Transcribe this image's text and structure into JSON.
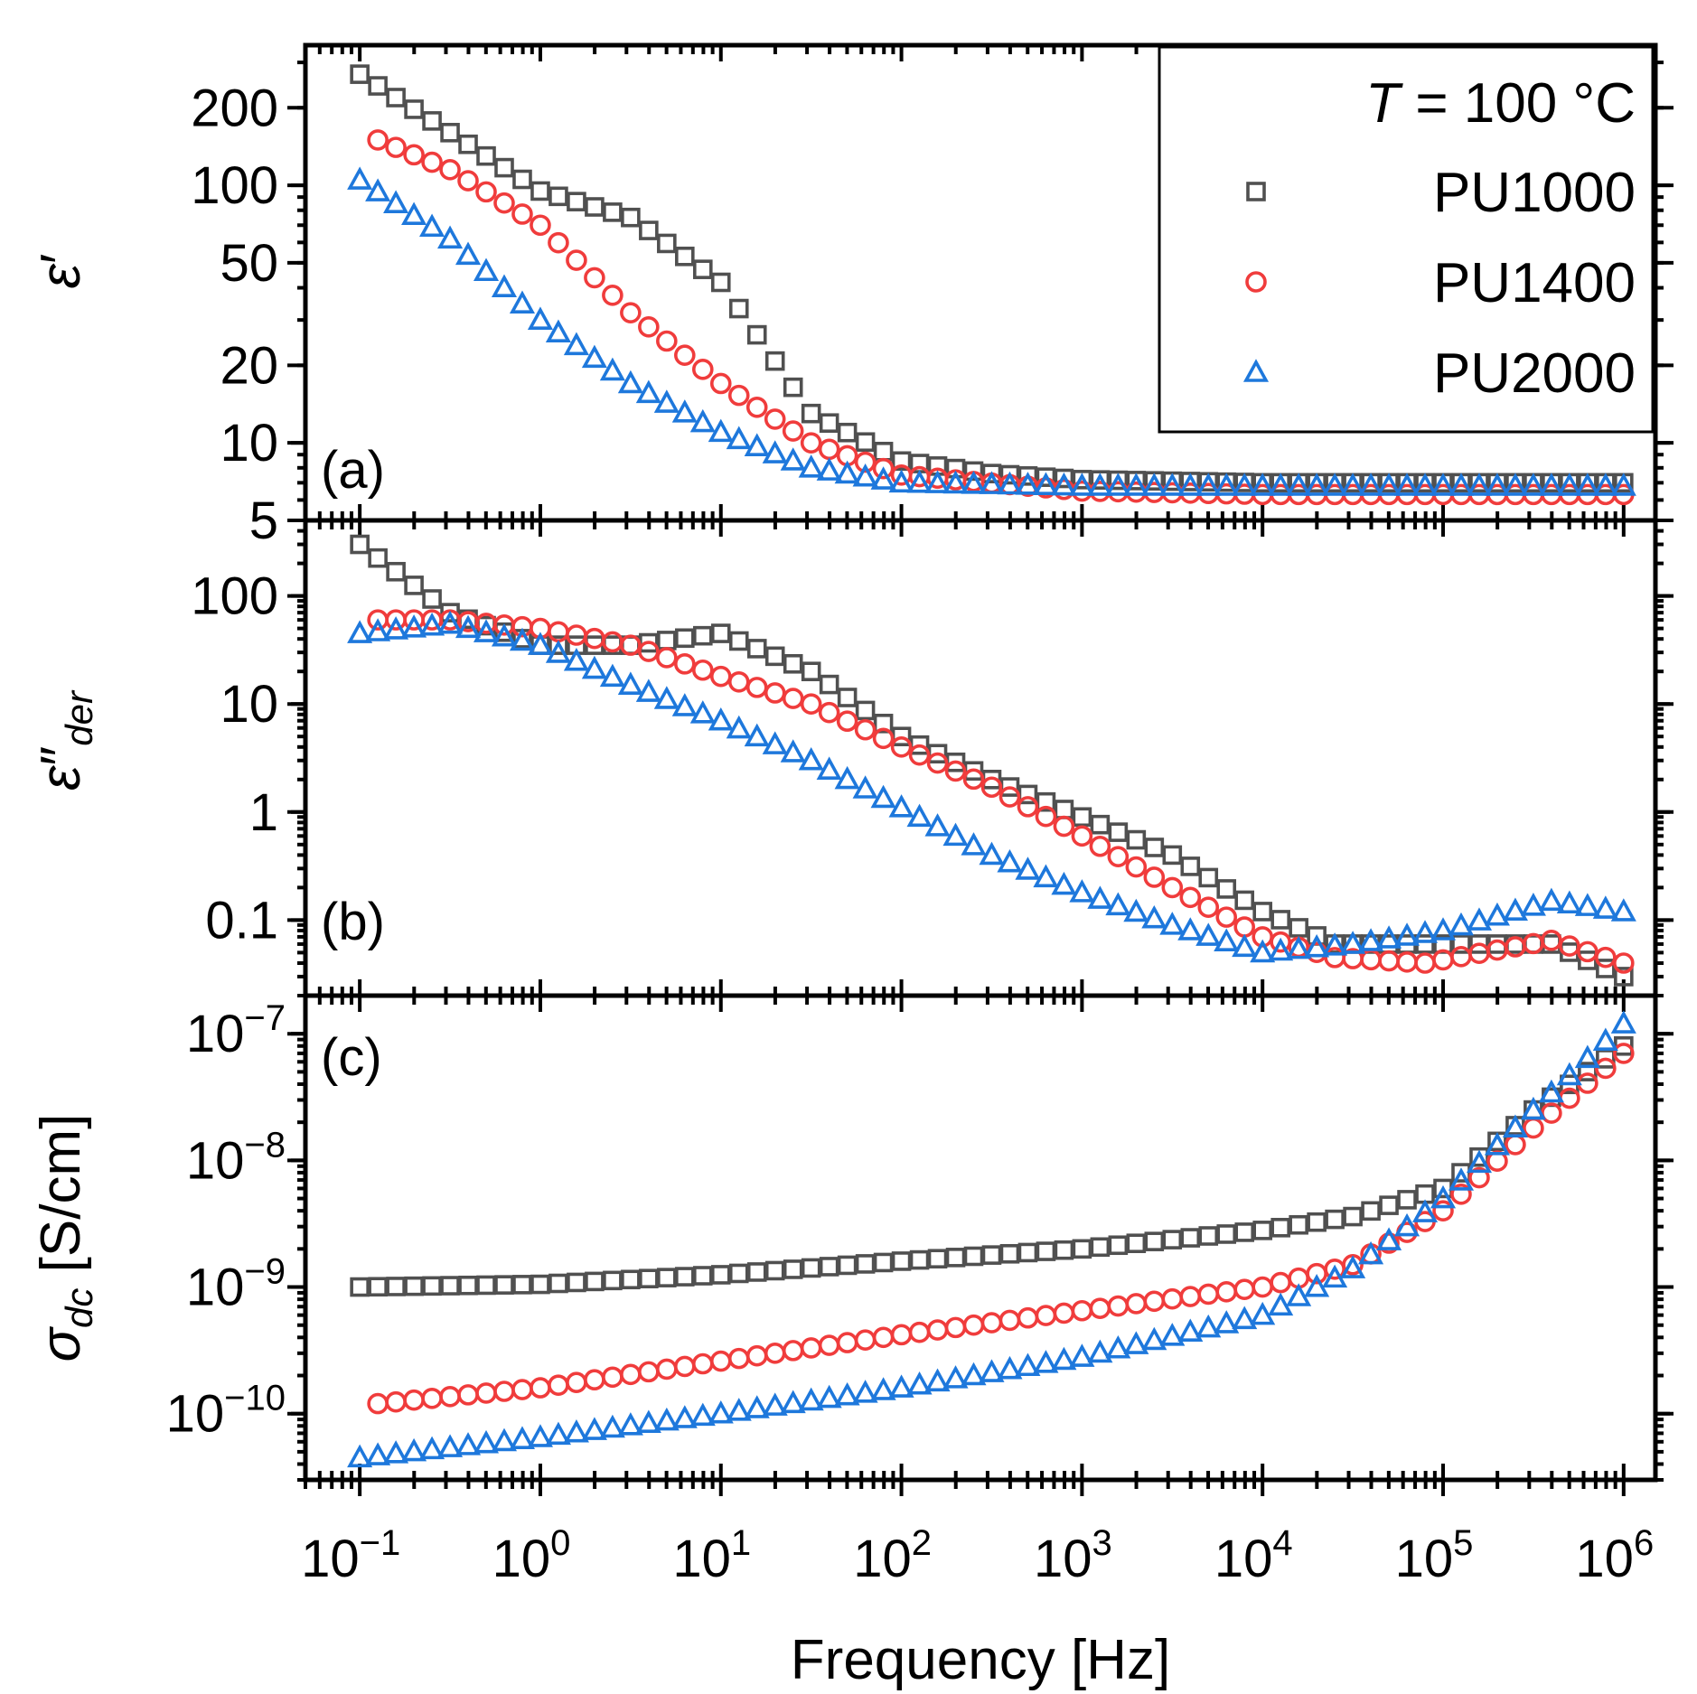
{
  "chart_data": {
    "type": "scatter",
    "x_scale": "log",
    "xlabel": "Frequency [Hz]",
    "x_tick_labels": [
      {
        "base": "10",
        "exp": "−1"
      },
      {
        "base": "10",
        "exp": "0"
      },
      {
        "base": "10",
        "exp": "1"
      },
      {
        "base": "10",
        "exp": "2"
      },
      {
        "base": "10",
        "exp": "3"
      },
      {
        "base": "10",
        "exp": "4"
      },
      {
        "base": "10",
        "exp": "5"
      },
      {
        "base": "10",
        "exp": "6"
      }
    ],
    "xlim": [
      0.05,
      1500000
    ],
    "legend": {
      "title_var": "T",
      "title_rest": " = 100 °C",
      "placement": "top-right of panel (a)",
      "entries": [
        {
          "name": "PU1000",
          "marker": "square",
          "color": "#505050"
        },
        {
          "name": "PU1400",
          "marker": "circle",
          "color": "#f03c3c"
        },
        {
          "name": "PU2000",
          "marker": "triangle",
          "color": "#1e78dc"
        }
      ]
    },
    "panels": [
      {
        "label": "(a)",
        "ylabel_symbol": "ε",
        "ylabel_prime": "′",
        "y_scale": "log",
        "ylim": [
          5,
          350
        ],
        "y_tick_labels": [
          "5",
          "10",
          "20",
          "50",
          "100",
          "200"
        ],
        "y_tick_values": [
          5,
          10,
          20,
          50,
          100,
          200
        ],
        "series": [
          {
            "name": "PU1000",
            "x_log": [
              -1,
              0,
              0.5,
              1,
              1.5,
              2,
              2.5,
              3,
              4,
              5,
              6
            ],
            "y": [
              270,
              95,
              75,
              42,
              13,
              8.5,
              7.6,
              7.2,
              7,
              7,
              7
            ]
          },
          {
            "name": "PU1400",
            "x_log": [
              -0.9,
              -0.5,
              0,
              0.5,
              1,
              1.5,
              2,
              3,
              4,
              5,
              6
            ],
            "y": [
              150,
              115,
              70,
              32,
              17,
              10,
              7.5,
              6.5,
              6.3,
              6.3,
              6.3
            ]
          },
          {
            "name": "PU2000",
            "x_log": [
              -1,
              -0.5,
              0,
              0.5,
              1,
              1.5,
              2,
              3,
              4,
              5,
              6
            ],
            "y": [
              105,
              62,
              30,
              17,
              11,
              8,
              7,
              6.8,
              6.8,
              6.8,
              6.8
            ]
          }
        ]
      },
      {
        "label": "(b)",
        "ylabel_symbol": "ε",
        "ylabel_prime": "″",
        "ylabel_sub": "der",
        "y_scale": "log",
        "ylim": [
          0.02,
          500
        ],
        "y_tick_labels": [
          "0.1",
          "1",
          "10",
          "100"
        ],
        "y_tick_values": [
          0.1,
          1,
          10,
          100
        ],
        "series": [
          {
            "name": "PU1000",
            "x_log": [
              -1,
              -0.5,
              0,
              0.5,
              1,
              1.5,
              2,
              2.5,
              3,
              3.5,
              4,
              4.4,
              5,
              5.6,
              6
            ],
            "y": [
              300,
              70,
              35,
              35,
              45,
              20,
              5,
              2,
              0.9,
              0.4,
              0.12,
              0.06,
              0.06,
              0.06,
              0.03
            ]
          },
          {
            "name": "PU1400",
            "x_log": [
              -0.9,
              -0.5,
              0,
              0.5,
              1,
              1.5,
              2,
              2.5,
              3,
              3.5,
              4,
              4.4,
              4.9,
              5.6,
              6
            ],
            "y": [
              60,
              60,
              50,
              35,
              18,
              10,
              4,
              1.7,
              0.6,
              0.2,
              0.07,
              0.045,
              0.04,
              0.065,
              0.04
            ]
          },
          {
            "name": "PU2000",
            "x_log": [
              -1,
              -0.5,
              0,
              0.5,
              1,
              1.5,
              2,
              2.5,
              3,
              3.5,
              4,
              4.5,
              5,
              5.6,
              6
            ],
            "y": [
              45,
              55,
              35,
              15,
              7,
              3,
              1.1,
              0.4,
              0.18,
              0.09,
              0.05,
              0.06,
              0.08,
              0.15,
              0.12
            ]
          }
        ]
      },
      {
        "label": "(c)",
        "ylabel_symbol": "σ",
        "ylabel_sub": "dc",
        "ylabel_unit": " [S/cm]",
        "y_scale": "log",
        "ylim": [
          3e-11,
          2e-07
        ],
        "y_tick_labels": [
          {
            "base": "10",
            "exp": "−10"
          },
          {
            "base": "10",
            "exp": "−9"
          },
          {
            "base": "10",
            "exp": "−8"
          },
          {
            "base": "10",
            "exp": "−7"
          }
        ],
        "y_tick_values": [
          1e-10,
          1e-09,
          1e-08,
          1e-07
        ],
        "series": [
          {
            "name": "PU1000",
            "x_log": [
              -1,
              0,
              1,
              2,
              3,
              4,
              4.5,
              5,
              5.5,
              6
            ],
            "y": [
              1e-09,
              1.05e-09,
              1.25e-09,
              1.6e-09,
              2e-09,
              2.8e-09,
              3.6e-09,
              6e-09,
              2.5e-08,
              8e-08
            ]
          },
          {
            "name": "PU1400",
            "x_log": [
              -0.9,
              0,
              1,
              2,
              3,
              4,
              4.5,
              5,
              5.5,
              6
            ],
            "y": [
              1.2e-10,
              1.6e-10,
              2.6e-10,
              4.2e-10,
              6.5e-10,
              1e-09,
              1.5e-09,
              4e-09,
              1.8e-08,
              7e-08
            ]
          },
          {
            "name": "PU2000",
            "x_log": [
              -1,
              0,
              1,
              2,
              3,
              4,
              4.5,
              5,
              5.5,
              6
            ],
            "y": [
              4.5e-11,
              6.5e-11,
              1e-10,
              1.6e-10,
              2.8e-10,
              6e-10,
              1.4e-09,
              5e-09,
              2.5e-08,
              1.2e-07
            ]
          }
        ]
      }
    ]
  }
}
